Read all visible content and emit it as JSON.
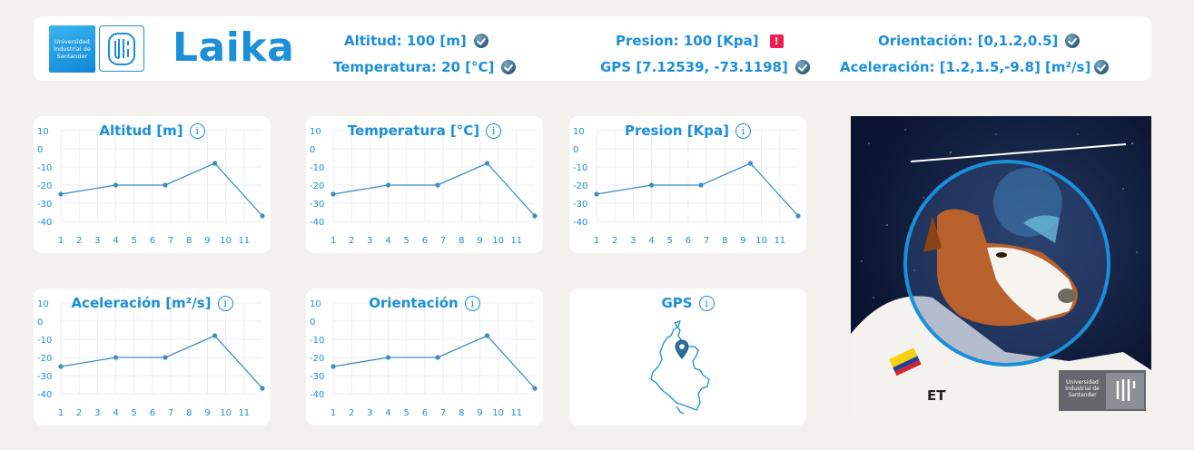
{
  "header": {
    "logo_text": "Universidad Industrial de Santander",
    "title": "Laika",
    "statuses": [
      {
        "label": "Altitud: 100 [m]",
        "state": "ok"
      },
      {
        "label": "Temperatura: 20 [°C]",
        "state": "ok"
      },
      {
        "label": "Presion: 100 [Kpa]",
        "state": "alert"
      },
      {
        "label": "GPS [7.12539, -73.1198]",
        "state": "ok"
      },
      {
        "label": "Orientación: [0,1.2,0.5]",
        "state": "ok"
      },
      {
        "label": "Aceleración: [1.2,1.5,-9.8] [m²/s]",
        "state": "ok"
      }
    ],
    "alert_glyph": "!"
  },
  "cards": [
    {
      "title": "Altitud [m]"
    },
    {
      "title": "Temperatura [°C]"
    },
    {
      "title": "Presion [Kpa]"
    },
    {
      "title": "Aceleración [m²/s]"
    },
    {
      "title": "Orientación"
    },
    {
      "title": "GPS"
    }
  ],
  "info_glyph": "i",
  "chart_data": [
    {
      "type": "line",
      "title": "Altitud [m]",
      "x": [
        1,
        4,
        6.7,
        9.4,
        12
      ],
      "y": [
        -25,
        -20,
        -20,
        -8,
        -37
      ],
      "xticks": [
        "1",
        "2",
        "3",
        "4",
        "5",
        "6",
        "7",
        "8",
        "9",
        "10",
        "11"
      ],
      "yticks": [
        "10",
        "0",
        "-10",
        "-20",
        "-30",
        "-40"
      ],
      "ylim": [
        -40,
        10
      ],
      "grid": true
    },
    {
      "type": "line",
      "title": "Temperatura [°C]",
      "x": [
        1,
        4,
        6.7,
        9.4,
        12
      ],
      "y": [
        -25,
        -20,
        -20,
        -8,
        -37
      ],
      "xticks": [
        "1",
        "2",
        "3",
        "4",
        "5",
        "6",
        "7",
        "8",
        "9",
        "10",
        "11"
      ],
      "yticks": [
        "10",
        "0",
        "-10",
        "-20",
        "-30",
        "-40"
      ],
      "ylim": [
        -40,
        10
      ],
      "grid": true
    },
    {
      "type": "line",
      "title": "Presion [Kpa]",
      "x": [
        1,
        4,
        6.7,
        9.4,
        12
      ],
      "y": [
        -25,
        -20,
        -20,
        -8,
        -37
      ],
      "xticks": [
        "1",
        "2",
        "3",
        "4",
        "5",
        "6",
        "7",
        "8",
        "9",
        "10",
        "11"
      ],
      "yticks": [
        "10",
        "0",
        "-10",
        "-20",
        "-30",
        "-40"
      ],
      "ylim": [
        -40,
        10
      ],
      "grid": true
    },
    {
      "type": "line",
      "title": "Aceleración [m²/s]",
      "x": [
        1,
        4,
        6.7,
        9.4,
        12
      ],
      "y": [
        -25,
        -20,
        -20,
        -8,
        -37
      ],
      "xticks": [
        "1",
        "2",
        "3",
        "4",
        "5",
        "6",
        "7",
        "8",
        "9",
        "10",
        "11"
      ],
      "yticks": [
        "10",
        "0",
        "-10",
        "-20",
        "-30",
        "-40"
      ],
      "ylim": [
        -40,
        10
      ],
      "grid": true
    },
    {
      "type": "line",
      "title": "Orientación",
      "x": [
        1,
        4,
        6.7,
        9.4,
        12
      ],
      "y": [
        -25,
        -20,
        -20,
        -8,
        -37
      ],
      "xticks": [
        "1",
        "2",
        "3",
        "4",
        "5",
        "6",
        "7",
        "8",
        "9",
        "10",
        "11"
      ],
      "yticks": [
        "10",
        "0",
        "-10",
        "-20",
        "-30",
        "-40"
      ],
      "ylim": [
        -40,
        10
      ],
      "grid": true
    }
  ],
  "gps_card": {
    "map_icon": "colombia-map-icon",
    "marker_icon": "location-pin-icon"
  },
  "photo": {
    "badge_text": "Universidad Industrial de Santander",
    "flag": "colombia-flag",
    "patch_text": "ET"
  },
  "colors": {
    "accent": "#1b8fd8",
    "alert": "#ee1d52",
    "line": "#3a8ec2",
    "background": "#f2f1ed"
  }
}
